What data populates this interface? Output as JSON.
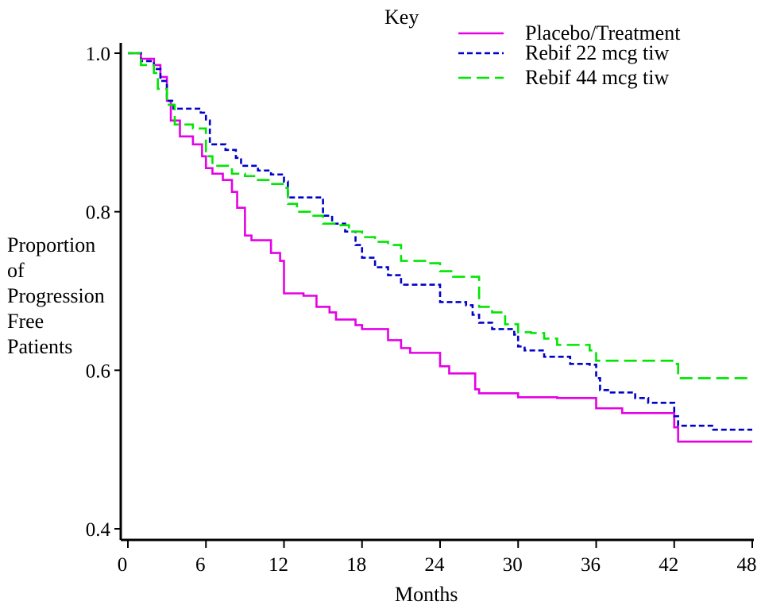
{
  "chart_data": {
    "type": "line",
    "step": true,
    "xlabel": "Months",
    "ylabel_lines": [
      "Proportion",
      "of",
      "Progression",
      "Free",
      "Patients"
    ],
    "legend_title": "Key",
    "legend_position": "top-right",
    "xlim": [
      0,
      48
    ],
    "ylim": [
      0.4,
      1.0
    ],
    "xticks": [
      {
        "value": 0,
        "label": "0"
      },
      {
        "value": 6,
        "label": "6"
      },
      {
        "value": 12,
        "label": "12"
      },
      {
        "value": 18,
        "label": "18"
      },
      {
        "value": 24,
        "label": "24"
      },
      {
        "value": 30,
        "label": "30"
      },
      {
        "value": 36,
        "label": "36"
      },
      {
        "value": 42,
        "label": "42"
      },
      {
        "value": 48,
        "label": "48"
      }
    ],
    "yticks": [
      {
        "value": 0.4,
        "label": "0.4"
      },
      {
        "value": 0.6,
        "label": "0.6"
      },
      {
        "value": 0.8,
        "label": "0.8"
      },
      {
        "value": 1.0,
        "label": "1.0"
      }
    ],
    "series": [
      {
        "name": "Placebo/Treatment",
        "color": "#e600e6",
        "dash": "solid",
        "points": [
          [
            0,
            1.0
          ],
          [
            1,
            0.993
          ],
          [
            2,
            0.985
          ],
          [
            2.5,
            0.97
          ],
          [
            3,
            0.94
          ],
          [
            3.3,
            0.915
          ],
          [
            4,
            0.895
          ],
          [
            5,
            0.885
          ],
          [
            5.7,
            0.87
          ],
          [
            6,
            0.855
          ],
          [
            6.5,
            0.848
          ],
          [
            7.3,
            0.84
          ],
          [
            8,
            0.825
          ],
          [
            8.4,
            0.805
          ],
          [
            9,
            0.77
          ],
          [
            9.5,
            0.764
          ],
          [
            11,
            0.748
          ],
          [
            11.7,
            0.738
          ],
          [
            12,
            0.697
          ],
          [
            13.5,
            0.694
          ],
          [
            14.5,
            0.68
          ],
          [
            15.5,
            0.673
          ],
          [
            16,
            0.664
          ],
          [
            17.5,
            0.657
          ],
          [
            18,
            0.652
          ],
          [
            20,
            0.638
          ],
          [
            21,
            0.628
          ],
          [
            21.7,
            0.622
          ],
          [
            24,
            0.605
          ],
          [
            24.7,
            0.596
          ],
          [
            26.7,
            0.576
          ],
          [
            27,
            0.571
          ],
          [
            30,
            0.566
          ],
          [
            33,
            0.565
          ],
          [
            36,
            0.552
          ],
          [
            38,
            0.546
          ],
          [
            40,
            0.546
          ],
          [
            42,
            0.528
          ],
          [
            42.3,
            0.51
          ],
          [
            48,
            0.51
          ]
        ]
      },
      {
        "name": "Rebif 22 mcg tiw",
        "color": "#0000cc",
        "dash": "short",
        "points": [
          [
            0,
            1.0
          ],
          [
            1,
            0.99
          ],
          [
            2,
            0.98
          ],
          [
            2.5,
            0.965
          ],
          [
            3,
            0.94
          ],
          [
            3.5,
            0.93
          ],
          [
            4,
            0.93
          ],
          [
            5,
            0.93
          ],
          [
            5.6,
            0.925
          ],
          [
            6,
            0.915
          ],
          [
            6.3,
            0.885
          ],
          [
            7.5,
            0.878
          ],
          [
            8.3,
            0.868
          ],
          [
            8.7,
            0.858
          ],
          [
            10,
            0.852
          ],
          [
            11,
            0.847
          ],
          [
            12,
            0.838
          ],
          [
            12.3,
            0.818
          ],
          [
            15,
            0.795
          ],
          [
            15.7,
            0.785
          ],
          [
            16.7,
            0.775
          ],
          [
            17.5,
            0.758
          ],
          [
            18,
            0.742
          ],
          [
            19,
            0.73
          ],
          [
            20,
            0.72
          ],
          [
            21,
            0.708
          ],
          [
            24,
            0.686
          ],
          [
            26,
            0.682
          ],
          [
            26.5,
            0.67
          ],
          [
            27,
            0.66
          ],
          [
            28,
            0.652
          ],
          [
            29.7,
            0.645
          ],
          [
            30,
            0.63
          ],
          [
            30.5,
            0.625
          ],
          [
            32,
            0.617
          ],
          [
            34,
            0.608
          ],
          [
            35.5,
            0.607
          ],
          [
            36,
            0.59
          ],
          [
            36.3,
            0.575
          ],
          [
            37,
            0.572
          ],
          [
            39,
            0.565
          ],
          [
            40,
            0.559
          ],
          [
            42,
            0.542
          ],
          [
            42.3,
            0.53
          ],
          [
            44,
            0.53
          ],
          [
            45,
            0.525
          ],
          [
            48,
            0.525
          ]
        ]
      },
      {
        "name": "Rebif 44 mcg tiw",
        "color": "#00e600",
        "dash": "long",
        "points": [
          [
            0,
            1.0
          ],
          [
            1,
            0.985
          ],
          [
            2,
            0.975
          ],
          [
            2.3,
            0.955
          ],
          [
            3,
            0.935
          ],
          [
            3.6,
            0.91
          ],
          [
            5,
            0.905
          ],
          [
            6,
            0.87
          ],
          [
            6.5,
            0.858
          ],
          [
            8,
            0.848
          ],
          [
            9,
            0.845
          ],
          [
            10,
            0.84
          ],
          [
            11,
            0.835
          ],
          [
            12,
            0.83
          ],
          [
            12.3,
            0.81
          ],
          [
            13,
            0.8
          ],
          [
            14,
            0.795
          ],
          [
            15,
            0.785
          ],
          [
            16,
            0.783
          ],
          [
            17,
            0.775
          ],
          [
            18,
            0.768
          ],
          [
            19,
            0.762
          ],
          [
            20,
            0.758
          ],
          [
            21,
            0.738
          ],
          [
            23,
            0.735
          ],
          [
            24,
            0.725
          ],
          [
            25,
            0.718
          ],
          [
            27,
            0.68
          ],
          [
            28,
            0.673
          ],
          [
            29,
            0.658
          ],
          [
            30,
            0.648
          ],
          [
            31,
            0.647
          ],
          [
            32,
            0.64
          ],
          [
            33,
            0.632
          ],
          [
            34,
            0.632
          ],
          [
            35.5,
            0.625
          ],
          [
            36,
            0.612
          ],
          [
            42,
            0.608
          ],
          [
            42.3,
            0.59
          ],
          [
            48,
            0.59
          ]
        ]
      }
    ]
  }
}
